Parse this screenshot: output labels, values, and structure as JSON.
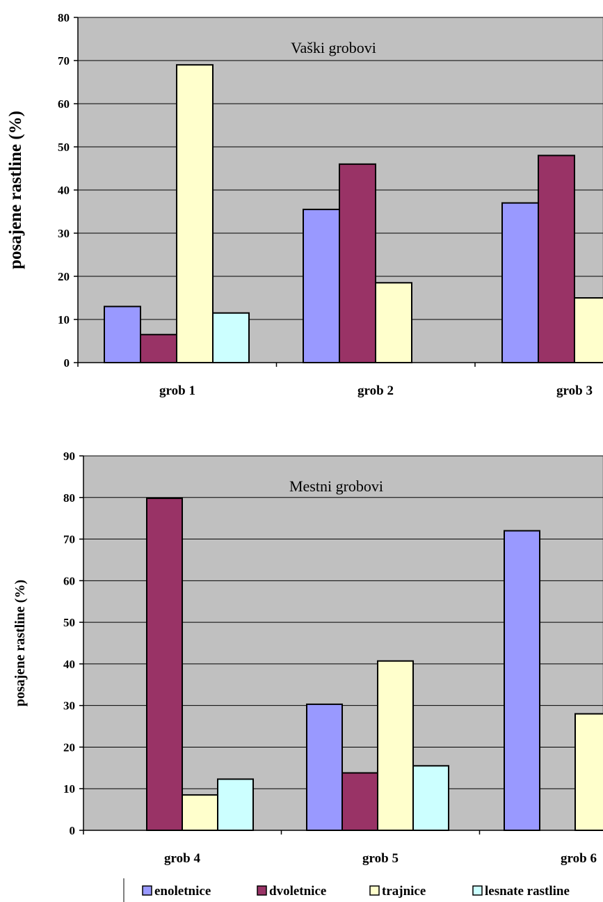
{
  "chart_data": [
    {
      "type": "bar",
      "title": "Vaški grobovi",
      "ylabel": "posajene rastline (%)",
      "xlabel": "",
      "ylim": [
        0,
        80
      ],
      "yticks": [
        "0",
        "10",
        "20",
        "30",
        "40",
        "50",
        "60",
        "70",
        "80"
      ],
      "grid": true,
      "categories": [
        "grob 1",
        "grob 2",
        "grob 3"
      ],
      "series": [
        {
          "name": "enoletnice",
          "color": "#9999ff",
          "values": [
            13,
            35.5,
            37
          ]
        },
        {
          "name": "dvoletnice",
          "color": "#993366",
          "values": [
            6.5,
            46,
            48
          ]
        },
        {
          "name": "trajnice",
          "color": "#ffffcc",
          "values": [
            69,
            18.5,
            15
          ]
        },
        {
          "name": "lesnate rastline",
          "color": "#ccffff",
          "values": [
            11.5,
            null,
            null
          ]
        }
      ]
    },
    {
      "type": "bar",
      "title": "Mestni grobovi",
      "ylabel": "posajene rastline (%)",
      "xlabel": "",
      "ylim": [
        0,
        90
      ],
      "yticks": [
        "0",
        "10",
        "20",
        "30",
        "40",
        "50",
        "60",
        "70",
        "80",
        "90"
      ],
      "grid": true,
      "categories": [
        "grob 4",
        "grob 5",
        "grob 6"
      ],
      "series": [
        {
          "name": "enoletnice",
          "color": "#9999ff",
          "values": [
            null,
            30.3,
            72
          ]
        },
        {
          "name": "dvoletnice",
          "color": "#993366",
          "values": [
            79.8,
            13.8,
            null
          ]
        },
        {
          "name": "trajnice",
          "color": "#ffffcc",
          "values": [
            8.5,
            40.7,
            28
          ]
        },
        {
          "name": "lesnate rastline",
          "color": "#ccffff",
          "values": [
            12.3,
            15.5,
            null
          ]
        }
      ]
    }
  ],
  "legend": {
    "position": "bottom",
    "items": [
      {
        "label": "enoletnice",
        "color": "#9999ff"
      },
      {
        "label": "dvoletnice",
        "color": "#993366"
      },
      {
        "label": "trajnice",
        "color": "#ffffcc"
      },
      {
        "label": "lesnate rastline",
        "color": "#ccffff"
      }
    ]
  }
}
